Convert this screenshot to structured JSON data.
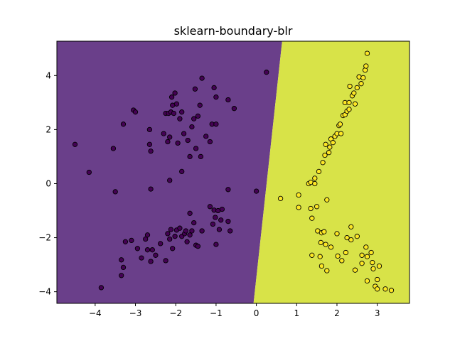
{
  "chart_data": {
    "type": "scatter",
    "title": "sklearn-boundary-blr",
    "xlabel": "",
    "ylabel": "",
    "xlim": [
      -4.95,
      3.8
    ],
    "ylim": [
      -4.43,
      5.27
    ],
    "xticks": [
      -4,
      -3,
      -2,
      -1,
      0,
      1,
      2,
      3
    ],
    "yticks": [
      -4,
      -2,
      0,
      2,
      4
    ],
    "grid": false,
    "decision_boundary": {
      "points": [
        [
          -0.07,
          -4.43
        ],
        [
          0.64,
          5.27
        ]
      ],
      "left_region_color": "#6a3f8a",
      "right_region_color": "#d8e348"
    },
    "series": [
      {
        "class": 0,
        "color": "#440154",
        "points": [
          [
            -4.5,
            1.45
          ],
          [
            -4.15,
            0.42
          ],
          [
            -3.55,
            1.3
          ],
          [
            -3.5,
            -0.3
          ],
          [
            -3.3,
            2.2
          ],
          [
            -3.05,
            2.72
          ],
          [
            -3.0,
            2.65
          ],
          [
            -2.65,
            2.0
          ],
          [
            -2.65,
            1.45
          ],
          [
            -2.62,
            1.2
          ],
          [
            -2.62,
            -0.2
          ],
          [
            -2.3,
            1.85
          ],
          [
            -2.25,
            2.6
          ],
          [
            -2.2,
            1.55
          ],
          [
            -2.18,
            2.6
          ],
          [
            -2.15,
            0.12
          ],
          [
            -2.15,
            1.72
          ],
          [
            -2.12,
            2.65
          ],
          [
            -2.1,
            3.2
          ],
          [
            -2.08,
            2.9
          ],
          [
            -2.05,
            2.6
          ],
          [
            -2.02,
            3.35
          ],
          [
            -1.98,
            2.95
          ],
          [
            -1.95,
            1.5
          ],
          [
            -1.9,
            2.4
          ],
          [
            -1.85,
            0.45
          ],
          [
            -1.85,
            2.65
          ],
          [
            -1.8,
            1.85
          ],
          [
            -1.7,
            1.6
          ],
          [
            -1.65,
            1.0
          ],
          [
            -1.6,
            2.1
          ],
          [
            -1.55,
            2.4
          ],
          [
            -1.52,
            3.5
          ],
          [
            -1.5,
            1.3
          ],
          [
            -1.45,
            2.5
          ],
          [
            -1.4,
            2.9
          ],
          [
            -1.38,
            1.0
          ],
          [
            -1.35,
            3.9
          ],
          [
            -1.25,
            1.75
          ],
          [
            -1.15,
            1.55
          ],
          [
            -1.1,
            2.2
          ],
          [
            -1.05,
            3.55
          ],
          [
            -1.0,
            2.2
          ],
          [
            -1.0,
            3.2
          ],
          [
            -0.7,
            3.1
          ],
          [
            -0.7,
            -0.22
          ],
          [
            -0.55,
            2.78
          ],
          [
            0.0,
            -0.28
          ],
          [
            0.25,
            4.12
          ],
          [
            -3.85,
            -3.85
          ],
          [
            -3.35,
            -3.4
          ],
          [
            -3.35,
            -2.82
          ],
          [
            -3.3,
            -3.1
          ],
          [
            -3.25,
            -2.15
          ],
          [
            -3.1,
            -2.1
          ],
          [
            -2.95,
            -2.4
          ],
          [
            -2.85,
            -2.75
          ],
          [
            -2.75,
            -2.05
          ],
          [
            -2.7,
            -2.45
          ],
          [
            -2.7,
            -1.9
          ],
          [
            -2.62,
            -2.88
          ],
          [
            -2.58,
            -2.45
          ],
          [
            -2.5,
            -2.65
          ],
          [
            -2.38,
            -2.22
          ],
          [
            -2.25,
            -2.85
          ],
          [
            -2.2,
            -1.85
          ],
          [
            -2.15,
            -2.05
          ],
          [
            -2.12,
            -1.7
          ],
          [
            -2.08,
            -2.4
          ],
          [
            -2.02,
            -1.95
          ],
          [
            -1.98,
            -1.72
          ],
          [
            -1.9,
            -1.65
          ],
          [
            -1.85,
            -1.95
          ],
          [
            -1.78,
            -1.85
          ],
          [
            -1.75,
            -1.75
          ],
          [
            -1.72,
            -2.15
          ],
          [
            -1.65,
            -1.9
          ],
          [
            -1.65,
            -1.1
          ],
          [
            -1.6,
            -1.75
          ],
          [
            -1.55,
            -1.45
          ],
          [
            -1.5,
            -2.28
          ],
          [
            -1.45,
            -2.32
          ],
          [
            -1.35,
            -1.75
          ],
          [
            -1.15,
            -0.85
          ],
          [
            -1.08,
            -1.5
          ],
          [
            -1.05,
            -0.98
          ],
          [
            -1.02,
            -1.25
          ],
          [
            -1.0,
            -2.25
          ],
          [
            -0.95,
            -1.0
          ],
          [
            -0.92,
            -1.7
          ],
          [
            -0.88,
            -1.35
          ],
          [
            -0.85,
            -0.95
          ],
          [
            -0.7,
            -1.4
          ],
          [
            -0.65,
            -1.75
          ]
        ]
      },
      {
        "class": 1,
        "color": "#fde725",
        "points": [
          [
            0.6,
            -0.55
          ],
          [
            1.05,
            -0.42
          ],
          [
            1.05,
            -0.88
          ],
          [
            1.3,
            0.0
          ],
          [
            1.35,
            0.05
          ],
          [
            1.35,
            -0.92
          ],
          [
            1.38,
            -1.28
          ],
          [
            1.38,
            -2.65
          ],
          [
            1.45,
            0.0
          ],
          [
            1.45,
            0.2
          ],
          [
            1.5,
            -0.85
          ],
          [
            1.52,
            -1.75
          ],
          [
            1.55,
            0.45
          ],
          [
            1.58,
            -2.7
          ],
          [
            1.6,
            -2.18
          ],
          [
            1.62,
            -1.82
          ],
          [
            1.62,
            -3.05
          ],
          [
            1.65,
            0.78
          ],
          [
            1.68,
            -1.78
          ],
          [
            1.7,
            1.05
          ],
          [
            1.72,
            1.45
          ],
          [
            1.72,
            -2.25
          ],
          [
            1.75,
            -0.6
          ],
          [
            1.75,
            -3.22
          ],
          [
            1.8,
            1.15
          ],
          [
            1.82,
            1.35
          ],
          [
            1.85,
            1.65
          ],
          [
            1.85,
            -2.35
          ],
          [
            1.9,
            1.52
          ],
          [
            1.95,
            1.75
          ],
          [
            2.0,
            1.85
          ],
          [
            2.0,
            -1.85
          ],
          [
            2.02,
            -2.68
          ],
          [
            2.05,
            2.15
          ],
          [
            2.08,
            2.2
          ],
          [
            2.1,
            1.85
          ],
          [
            2.12,
            -2.85
          ],
          [
            2.15,
            2.52
          ],
          [
            2.2,
            2.55
          ],
          [
            2.2,
            3.0
          ],
          [
            2.22,
            -2.55
          ],
          [
            2.25,
            2.68
          ],
          [
            2.25,
            -2.0
          ],
          [
            2.3,
            2.75
          ],
          [
            2.3,
            3.0
          ],
          [
            2.32,
            3.6
          ],
          [
            2.35,
            -2.08
          ],
          [
            2.35,
            -1.6
          ],
          [
            2.38,
            3.25
          ],
          [
            2.42,
            3.35
          ],
          [
            2.45,
            2.95
          ],
          [
            2.45,
            -3.2
          ],
          [
            2.5,
            3.55
          ],
          [
            2.5,
            -1.95
          ],
          [
            2.55,
            3.95
          ],
          [
            2.6,
            3.7
          ],
          [
            2.62,
            -2.65
          ],
          [
            2.62,
            -2.95
          ],
          [
            2.65,
            3.92
          ],
          [
            2.7,
            4.2
          ],
          [
            2.72,
            4.35
          ],
          [
            2.75,
            4.82
          ],
          [
            2.72,
            -2.35
          ],
          [
            2.75,
            -2.7
          ],
          [
            2.75,
            -3.6
          ],
          [
            2.85,
            -2.55
          ],
          [
            2.88,
            -2.92
          ],
          [
            2.9,
            -3.15
          ],
          [
            2.95,
            -3.8
          ],
          [
            3.0,
            -3.55
          ],
          [
            3.0,
            -3.9
          ],
          [
            3.05,
            -3.05
          ],
          [
            3.2,
            -3.9
          ],
          [
            3.35,
            -3.95
          ]
        ]
      }
    ]
  }
}
